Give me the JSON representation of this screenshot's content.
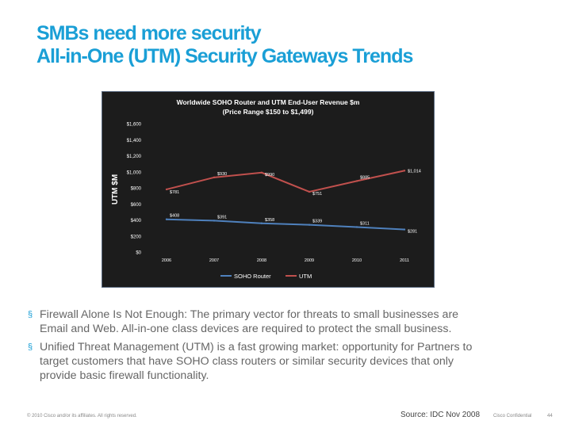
{
  "slide": {
    "title_line1": "SMBs need more security",
    "title_line2": "All-in-One (UTM) Security Gateways Trends",
    "bullets": [
      "Firewall Alone Is Not Enough: The primary vector for threats to small businesses are Email and Web.  All-in-one class devices are required to protect the small business.",
      "Unified Threat Management (UTM) is a fast growing market: opportunity for Partners to target customers that have SOHO class routers or similar security devices that only provide basic firewall functionality."
    ],
    "bullet_mark": "§",
    "copyright": "© 2010 Cisco and/or its affiliates. All rights reserved.",
    "source": "Source: IDC Nov 2008",
    "confidential": "Cisco Confidential",
    "page_number": "44"
  },
  "chart_data": {
    "type": "line",
    "title": "Worldwide SOHO Router and UTM End-User Revenue $m",
    "subtitle": "(Price Range $150 to $1,499)",
    "ylabel": "UTM  $M",
    "xlabel": "",
    "categories": [
      "2006",
      "2007",
      "2008",
      "2009",
      "2010",
      "2011"
    ],
    "yticks": [
      "$0",
      "$200",
      "$400",
      "$600",
      "$800",
      "$1,000",
      "$1,200",
      "$1,400",
      "$1,600"
    ],
    "ylim": [
      0,
      1600
    ],
    "grid": false,
    "legend_position": "bottom",
    "series": [
      {
        "name": "SOHO Router",
        "color": "#4f81bd",
        "values": [
          408,
          391,
          358,
          339,
          311,
          281
        ],
        "labels": [
          "$408",
          "$391",
          "$358",
          "$339",
          "$311",
          "$281"
        ]
      },
      {
        "name": "UTM",
        "color": "#c0504d",
        "values": [
          781,
          930,
          990,
          751,
          885,
          1014
        ],
        "labels": [
          "$781",
          "$930",
          "$990",
          "$751",
          "$885",
          "$1,014"
        ]
      }
    ],
    "colors": {
      "background": "#1c1c1c",
      "text": "#ffffff"
    }
  }
}
